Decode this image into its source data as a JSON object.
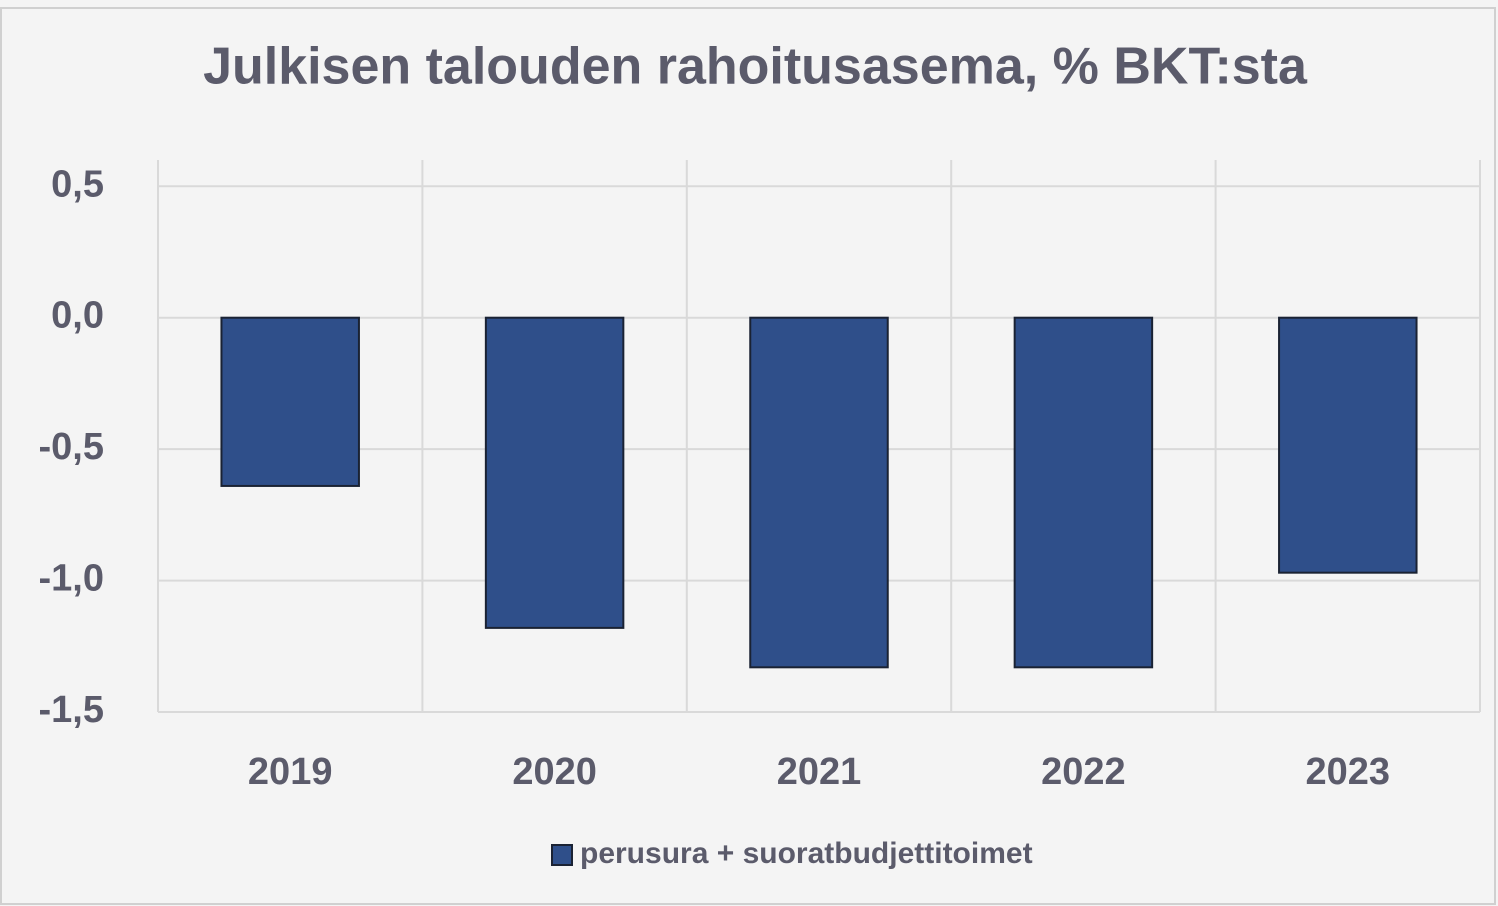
{
  "chart_data": {
    "type": "bar",
    "title": "Julkisen talouden rahoitusasema, % BKT:sta",
    "categories": [
      "2019",
      "2020",
      "2021",
      "2022",
      "2023"
    ],
    "series": [
      {
        "name": "perusura + suoratbudjettitoimet",
        "color": "#2f4f8a",
        "values": [
          -0.64,
          -1.18,
          -1.33,
          -1.33,
          -0.97
        ]
      }
    ],
    "ylim": [
      -1.5,
      0.6
    ],
    "yticks": [
      {
        "value": -1.5,
        "label": "-1,5"
      },
      {
        "value": -1.0,
        "label": "-1,0"
      },
      {
        "value": -0.5,
        "label": "-0,5"
      },
      {
        "value": 0,
        "label": "0,0"
      },
      {
        "value": 0.5,
        "label": "0,5"
      }
    ],
    "grid": true,
    "legend": "bottom"
  }
}
